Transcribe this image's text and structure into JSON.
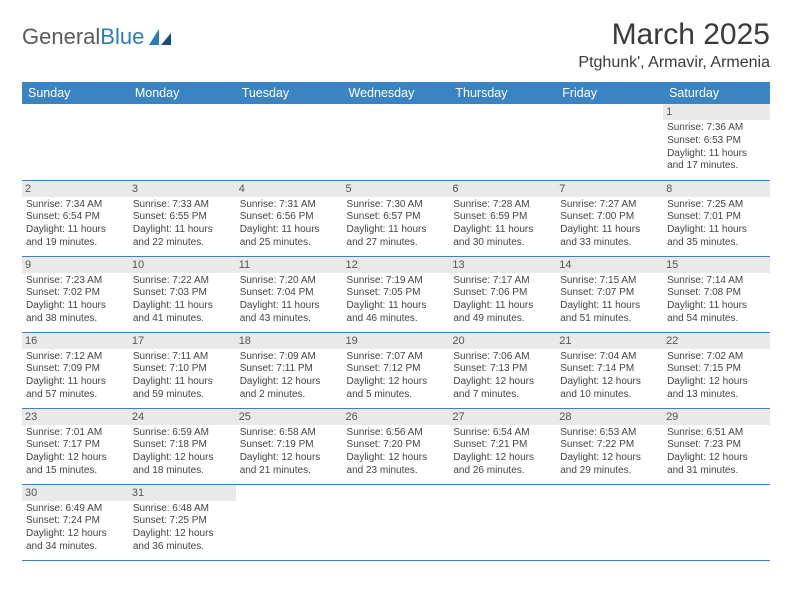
{
  "logo": {
    "text1": "General",
    "text2": "Blue"
  },
  "title": "March 2025",
  "location": "Ptghunk', Armavir, Armenia",
  "colors": {
    "header_bg": "#3b84c4",
    "header_text": "#ffffff",
    "daynum_bg": "#e9e9e9",
    "border": "#3b84c4",
    "logo_blue": "#2d7bbf",
    "logo_gray": "#5a5a5a"
  },
  "weekdays": [
    "Sunday",
    "Monday",
    "Tuesday",
    "Wednesday",
    "Thursday",
    "Friday",
    "Saturday"
  ],
  "weeks": [
    [
      null,
      null,
      null,
      null,
      null,
      null,
      {
        "n": "1",
        "sr": "Sunrise: 7:36 AM",
        "ss": "Sunset: 6:53 PM",
        "dl": "Daylight: 11 hours and 17 minutes."
      }
    ],
    [
      {
        "n": "2",
        "sr": "Sunrise: 7:34 AM",
        "ss": "Sunset: 6:54 PM",
        "dl": "Daylight: 11 hours and 19 minutes."
      },
      {
        "n": "3",
        "sr": "Sunrise: 7:33 AM",
        "ss": "Sunset: 6:55 PM",
        "dl": "Daylight: 11 hours and 22 minutes."
      },
      {
        "n": "4",
        "sr": "Sunrise: 7:31 AM",
        "ss": "Sunset: 6:56 PM",
        "dl": "Daylight: 11 hours and 25 minutes."
      },
      {
        "n": "5",
        "sr": "Sunrise: 7:30 AM",
        "ss": "Sunset: 6:57 PM",
        "dl": "Daylight: 11 hours and 27 minutes."
      },
      {
        "n": "6",
        "sr": "Sunrise: 7:28 AM",
        "ss": "Sunset: 6:59 PM",
        "dl": "Daylight: 11 hours and 30 minutes."
      },
      {
        "n": "7",
        "sr": "Sunrise: 7:27 AM",
        "ss": "Sunset: 7:00 PM",
        "dl": "Daylight: 11 hours and 33 minutes."
      },
      {
        "n": "8",
        "sr": "Sunrise: 7:25 AM",
        "ss": "Sunset: 7:01 PM",
        "dl": "Daylight: 11 hours and 35 minutes."
      }
    ],
    [
      {
        "n": "9",
        "sr": "Sunrise: 7:23 AM",
        "ss": "Sunset: 7:02 PM",
        "dl": "Daylight: 11 hours and 38 minutes."
      },
      {
        "n": "10",
        "sr": "Sunrise: 7:22 AM",
        "ss": "Sunset: 7:03 PM",
        "dl": "Daylight: 11 hours and 41 minutes."
      },
      {
        "n": "11",
        "sr": "Sunrise: 7:20 AM",
        "ss": "Sunset: 7:04 PM",
        "dl": "Daylight: 11 hours and 43 minutes."
      },
      {
        "n": "12",
        "sr": "Sunrise: 7:19 AM",
        "ss": "Sunset: 7:05 PM",
        "dl": "Daylight: 11 hours and 46 minutes."
      },
      {
        "n": "13",
        "sr": "Sunrise: 7:17 AM",
        "ss": "Sunset: 7:06 PM",
        "dl": "Daylight: 11 hours and 49 minutes."
      },
      {
        "n": "14",
        "sr": "Sunrise: 7:15 AM",
        "ss": "Sunset: 7:07 PM",
        "dl": "Daylight: 11 hours and 51 minutes."
      },
      {
        "n": "15",
        "sr": "Sunrise: 7:14 AM",
        "ss": "Sunset: 7:08 PM",
        "dl": "Daylight: 11 hours and 54 minutes."
      }
    ],
    [
      {
        "n": "16",
        "sr": "Sunrise: 7:12 AM",
        "ss": "Sunset: 7:09 PM",
        "dl": "Daylight: 11 hours and 57 minutes."
      },
      {
        "n": "17",
        "sr": "Sunrise: 7:11 AM",
        "ss": "Sunset: 7:10 PM",
        "dl": "Daylight: 11 hours and 59 minutes."
      },
      {
        "n": "18",
        "sr": "Sunrise: 7:09 AM",
        "ss": "Sunset: 7:11 PM",
        "dl": "Daylight: 12 hours and 2 minutes."
      },
      {
        "n": "19",
        "sr": "Sunrise: 7:07 AM",
        "ss": "Sunset: 7:12 PM",
        "dl": "Daylight: 12 hours and 5 minutes."
      },
      {
        "n": "20",
        "sr": "Sunrise: 7:06 AM",
        "ss": "Sunset: 7:13 PM",
        "dl": "Daylight: 12 hours and 7 minutes."
      },
      {
        "n": "21",
        "sr": "Sunrise: 7:04 AM",
        "ss": "Sunset: 7:14 PM",
        "dl": "Daylight: 12 hours and 10 minutes."
      },
      {
        "n": "22",
        "sr": "Sunrise: 7:02 AM",
        "ss": "Sunset: 7:15 PM",
        "dl": "Daylight: 12 hours and 13 minutes."
      }
    ],
    [
      {
        "n": "23",
        "sr": "Sunrise: 7:01 AM",
        "ss": "Sunset: 7:17 PM",
        "dl": "Daylight: 12 hours and 15 minutes."
      },
      {
        "n": "24",
        "sr": "Sunrise: 6:59 AM",
        "ss": "Sunset: 7:18 PM",
        "dl": "Daylight: 12 hours and 18 minutes."
      },
      {
        "n": "25",
        "sr": "Sunrise: 6:58 AM",
        "ss": "Sunset: 7:19 PM",
        "dl": "Daylight: 12 hours and 21 minutes."
      },
      {
        "n": "26",
        "sr": "Sunrise: 6:56 AM",
        "ss": "Sunset: 7:20 PM",
        "dl": "Daylight: 12 hours and 23 minutes."
      },
      {
        "n": "27",
        "sr": "Sunrise: 6:54 AM",
        "ss": "Sunset: 7:21 PM",
        "dl": "Daylight: 12 hours and 26 minutes."
      },
      {
        "n": "28",
        "sr": "Sunrise: 6:53 AM",
        "ss": "Sunset: 7:22 PM",
        "dl": "Daylight: 12 hours and 29 minutes."
      },
      {
        "n": "29",
        "sr": "Sunrise: 6:51 AM",
        "ss": "Sunset: 7:23 PM",
        "dl": "Daylight: 12 hours and 31 minutes."
      }
    ],
    [
      {
        "n": "30",
        "sr": "Sunrise: 6:49 AM",
        "ss": "Sunset: 7:24 PM",
        "dl": "Daylight: 12 hours and 34 minutes."
      },
      {
        "n": "31",
        "sr": "Sunrise: 6:48 AM",
        "ss": "Sunset: 7:25 PM",
        "dl": "Daylight: 12 hours and 36 minutes."
      },
      null,
      null,
      null,
      null,
      null
    ]
  ]
}
